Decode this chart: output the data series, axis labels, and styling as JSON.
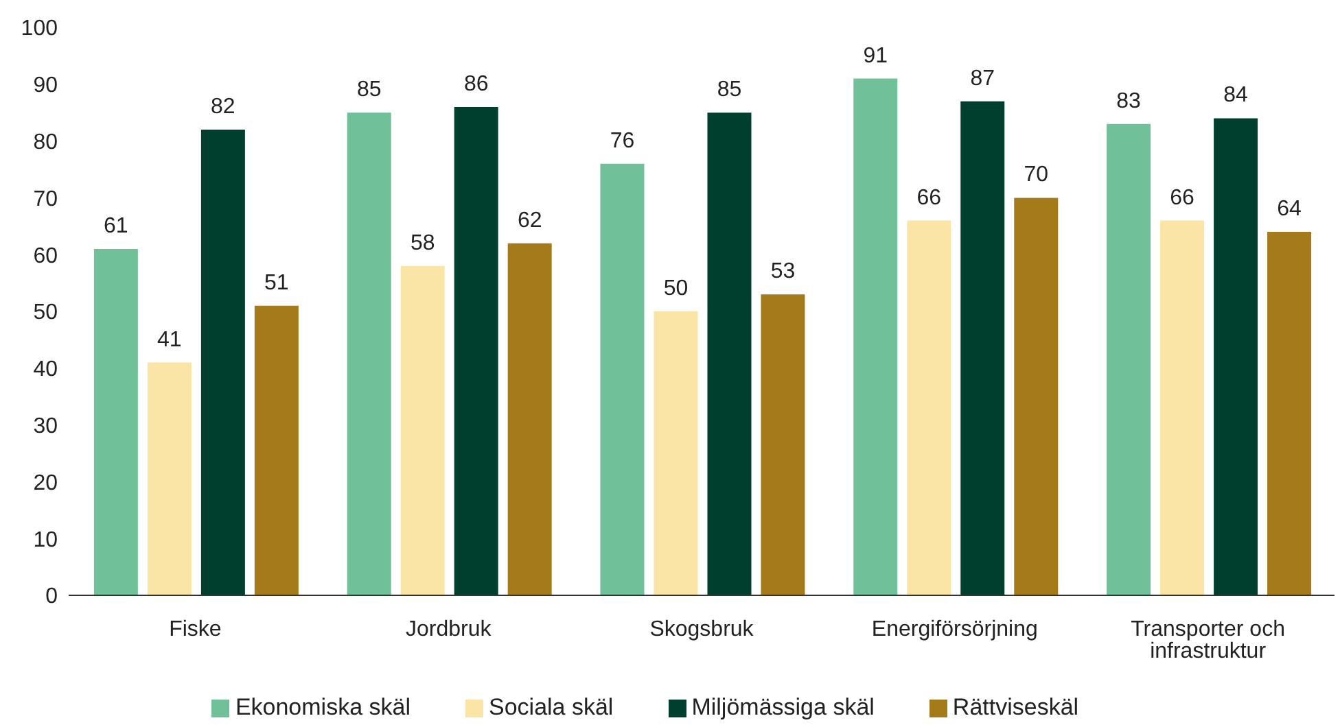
{
  "chart_data": {
    "type": "bar",
    "categories": [
      "Fiske",
      "Jordbruk",
      "Skogsbruk",
      "Energiförsörjning",
      "Transporter och infrastruktur"
    ],
    "series": [
      {
        "name": "Ekonomiska skäl",
        "color": "#70c19a",
        "values": [
          61,
          85,
          76,
          91,
          83
        ]
      },
      {
        "name": "Sociala skäl",
        "color": "#fbe5a6",
        "values": [
          41,
          58,
          50,
          66,
          66
        ]
      },
      {
        "name": "Miljömässiga skäl",
        "color": "#003f2d",
        "values": [
          82,
          86,
          85,
          87,
          84
        ]
      },
      {
        "name": "Rättviseskäl",
        "color": "#a57a1a",
        "values": [
          51,
          62,
          53,
          70,
          64
        ]
      }
    ],
    "ylim": [
      0,
      100
    ],
    "yticks": [
      0,
      10,
      20,
      30,
      40,
      50,
      60,
      70,
      80,
      90,
      100
    ],
    "grid": false,
    "legend": "bottom",
    "data_labels": true
  }
}
